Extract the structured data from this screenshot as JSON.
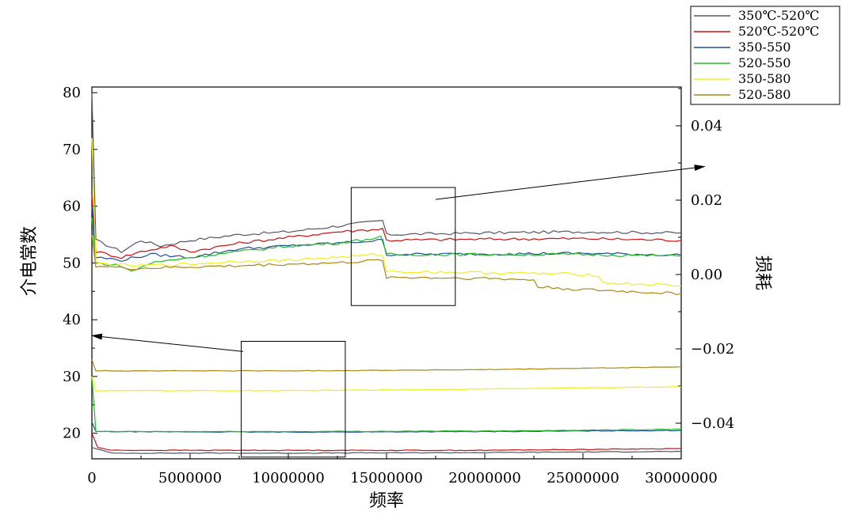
{
  "chart_data": {
    "type": "line",
    "title": "",
    "xlabel": "频率",
    "ylabel": "介电常数",
    "y2label": "损耗",
    "xlim": [
      0,
      30000000
    ],
    "ylim": [
      15,
      80
    ],
    "y2lim": [
      -0.05,
      0.05
    ],
    "x_ticks": [
      0,
      5000000,
      10000000,
      15000000,
      20000000,
      25000000,
      30000000
    ],
    "x_tick_labels": [
      "0",
      "5000000",
      "10000000",
      "15000000",
      "20000000",
      "25000000",
      "30000000"
    ],
    "y_ticks": [
      20,
      30,
      40,
      50,
      60,
      70,
      80
    ],
    "y_tick_labels": [
      "20",
      "30",
      "40",
      "50",
      "60",
      "70",
      "80"
    ],
    "y2_ticks": [
      -0.04,
      -0.02,
      0.0,
      0.02,
      0.04
    ],
    "y2_tick_labels": [
      "−0.04",
      "−0.02",
      "0.00",
      "0.02",
      "0.04"
    ],
    "legend_position": "top-right",
    "grid": false,
    "series": [
      {
        "name": "350℃-520℃",
        "color": "#555566",
        "upper": [
          [
            0,
            80
          ],
          [
            200000,
            54
          ],
          [
            1500000,
            52
          ],
          [
            2500000,
            54
          ],
          [
            3500000,
            53
          ],
          [
            5000000,
            54
          ],
          [
            7500000,
            55
          ],
          [
            10000000,
            55.5
          ],
          [
            12500000,
            56.5
          ],
          [
            14800000,
            57.5
          ],
          [
            15000000,
            55
          ],
          [
            20000000,
            55.3
          ],
          [
            25000000,
            55.5
          ],
          [
            30000000,
            55.3
          ]
        ],
        "lower": [
          [
            0,
            17.5
          ],
          [
            1000000,
            16.5
          ],
          [
            10000000,
            16.5
          ],
          [
            20000000,
            16.6
          ],
          [
            30000000,
            16.8
          ]
        ]
      },
      {
        "name": "520℃-520℃",
        "color": "#cc1111",
        "upper": [
          [
            0,
            62
          ],
          [
            200000,
            52
          ],
          [
            1500000,
            51
          ],
          [
            2500000,
            52
          ],
          [
            4000000,
            53
          ],
          [
            5000000,
            52
          ],
          [
            7500000,
            53.5
          ],
          [
            10000000,
            54.5
          ],
          [
            12500000,
            55.5
          ],
          [
            14800000,
            56
          ],
          [
            15000000,
            54
          ],
          [
            20000000,
            54.2
          ],
          [
            25000000,
            54.3
          ],
          [
            30000000,
            54
          ]
        ],
        "lower": [
          [
            0,
            20
          ],
          [
            300000,
            17.5
          ],
          [
            1000000,
            17
          ],
          [
            10000000,
            17
          ],
          [
            20000000,
            17
          ],
          [
            30000000,
            17.3
          ]
        ]
      },
      {
        "name": "350-550",
        "color": "#1f4e9a",
        "upper": [
          [
            0,
            60
          ],
          [
            200000,
            51
          ],
          [
            1500000,
            50.5
          ],
          [
            3000000,
            51.5
          ],
          [
            5000000,
            51
          ],
          [
            7500000,
            52.5
          ],
          [
            10000000,
            53
          ],
          [
            12500000,
            53.5
          ],
          [
            14800000,
            54
          ],
          [
            15000000,
            51.5
          ],
          [
            20000000,
            51.6
          ],
          [
            25000000,
            51.7
          ],
          [
            30000000,
            51.4
          ]
        ],
        "lower": [
          [
            0,
            22
          ],
          [
            200000,
            20.3
          ],
          [
            10000000,
            20.2
          ],
          [
            20000000,
            20.3
          ],
          [
            30000000,
            20.5
          ]
        ]
      },
      {
        "name": "520-550",
        "color": "#22bb22",
        "upper": [
          [
            0,
            58
          ],
          [
            200000,
            50
          ],
          [
            1500000,
            49.5
          ],
          [
            2000000,
            48.5
          ],
          [
            3000000,
            50
          ],
          [
            5000000,
            51
          ],
          [
            7500000,
            52
          ],
          [
            10000000,
            53
          ],
          [
            12500000,
            53.5
          ],
          [
            14700000,
            54.5
          ],
          [
            15000000,
            51.5
          ],
          [
            20000000,
            51.5
          ],
          [
            25000000,
            51.5
          ],
          [
            30000000,
            51.2
          ]
        ],
        "lower": [
          [
            0,
            30
          ],
          [
            200000,
            20.3
          ],
          [
            10000000,
            20.3
          ],
          [
            20000000,
            20.4
          ],
          [
            30000000,
            20.7
          ]
        ]
      },
      {
        "name": "350-580",
        "color": "#eeee22",
        "upper": [
          [
            0,
            72
          ],
          [
            200000,
            50
          ],
          [
            2000000,
            49.5
          ],
          [
            5000000,
            49.8
          ],
          [
            7500000,
            50.3
          ],
          [
            10000000,
            50.5
          ],
          [
            12500000,
            51
          ],
          [
            14800000,
            51.5
          ],
          [
            15000000,
            48.5
          ],
          [
            20000000,
            48.3
          ],
          [
            25000000,
            48
          ],
          [
            25800000,
            47.8
          ],
          [
            26000000,
            46.5
          ],
          [
            30000000,
            46
          ]
        ],
        "lower": [
          [
            0,
            30
          ],
          [
            200000,
            27.5
          ],
          [
            10000000,
            27.5
          ],
          [
            20000000,
            27.8
          ],
          [
            30000000,
            28.2
          ]
        ]
      },
      {
        "name": "520-580",
        "color": "#aa8811",
        "upper": [
          [
            0,
            55
          ],
          [
            200000,
            49.5
          ],
          [
            2000000,
            49
          ],
          [
            5000000,
            49.3
          ],
          [
            7500000,
            49.5
          ],
          [
            10000000,
            49.8
          ],
          [
            12500000,
            50
          ],
          [
            14800000,
            50.5
          ],
          [
            15000000,
            47.5
          ],
          [
            20000000,
            47.3
          ],
          [
            22500000,
            47
          ],
          [
            22700000,
            45.8
          ],
          [
            25000000,
            45.3
          ],
          [
            30000000,
            44.6
          ]
        ],
        "lower": [
          [
            0,
            33
          ],
          [
            200000,
            31
          ],
          [
            10000000,
            31
          ],
          [
            20000000,
            31.2
          ],
          [
            30000000,
            31.7
          ]
        ]
      }
    ],
    "annotations": {
      "upper_box": {
        "x": [
          13200000,
          18500000
        ],
        "y": [
          42.5,
          63.3
        ]
      },
      "lower_box": {
        "x": [
          7600000,
          12900000
        ],
        "y": [
          15.8,
          36.2
        ]
      },
      "arrow_to_right": {
        "from": [
          17500000,
          61.2
        ],
        "to": [
          31200000,
          67
        ]
      },
      "arrow_to_left": {
        "from": [
          7700000,
          34.4
        ],
        "to": [
          0,
          37.2
        ]
      }
    }
  }
}
